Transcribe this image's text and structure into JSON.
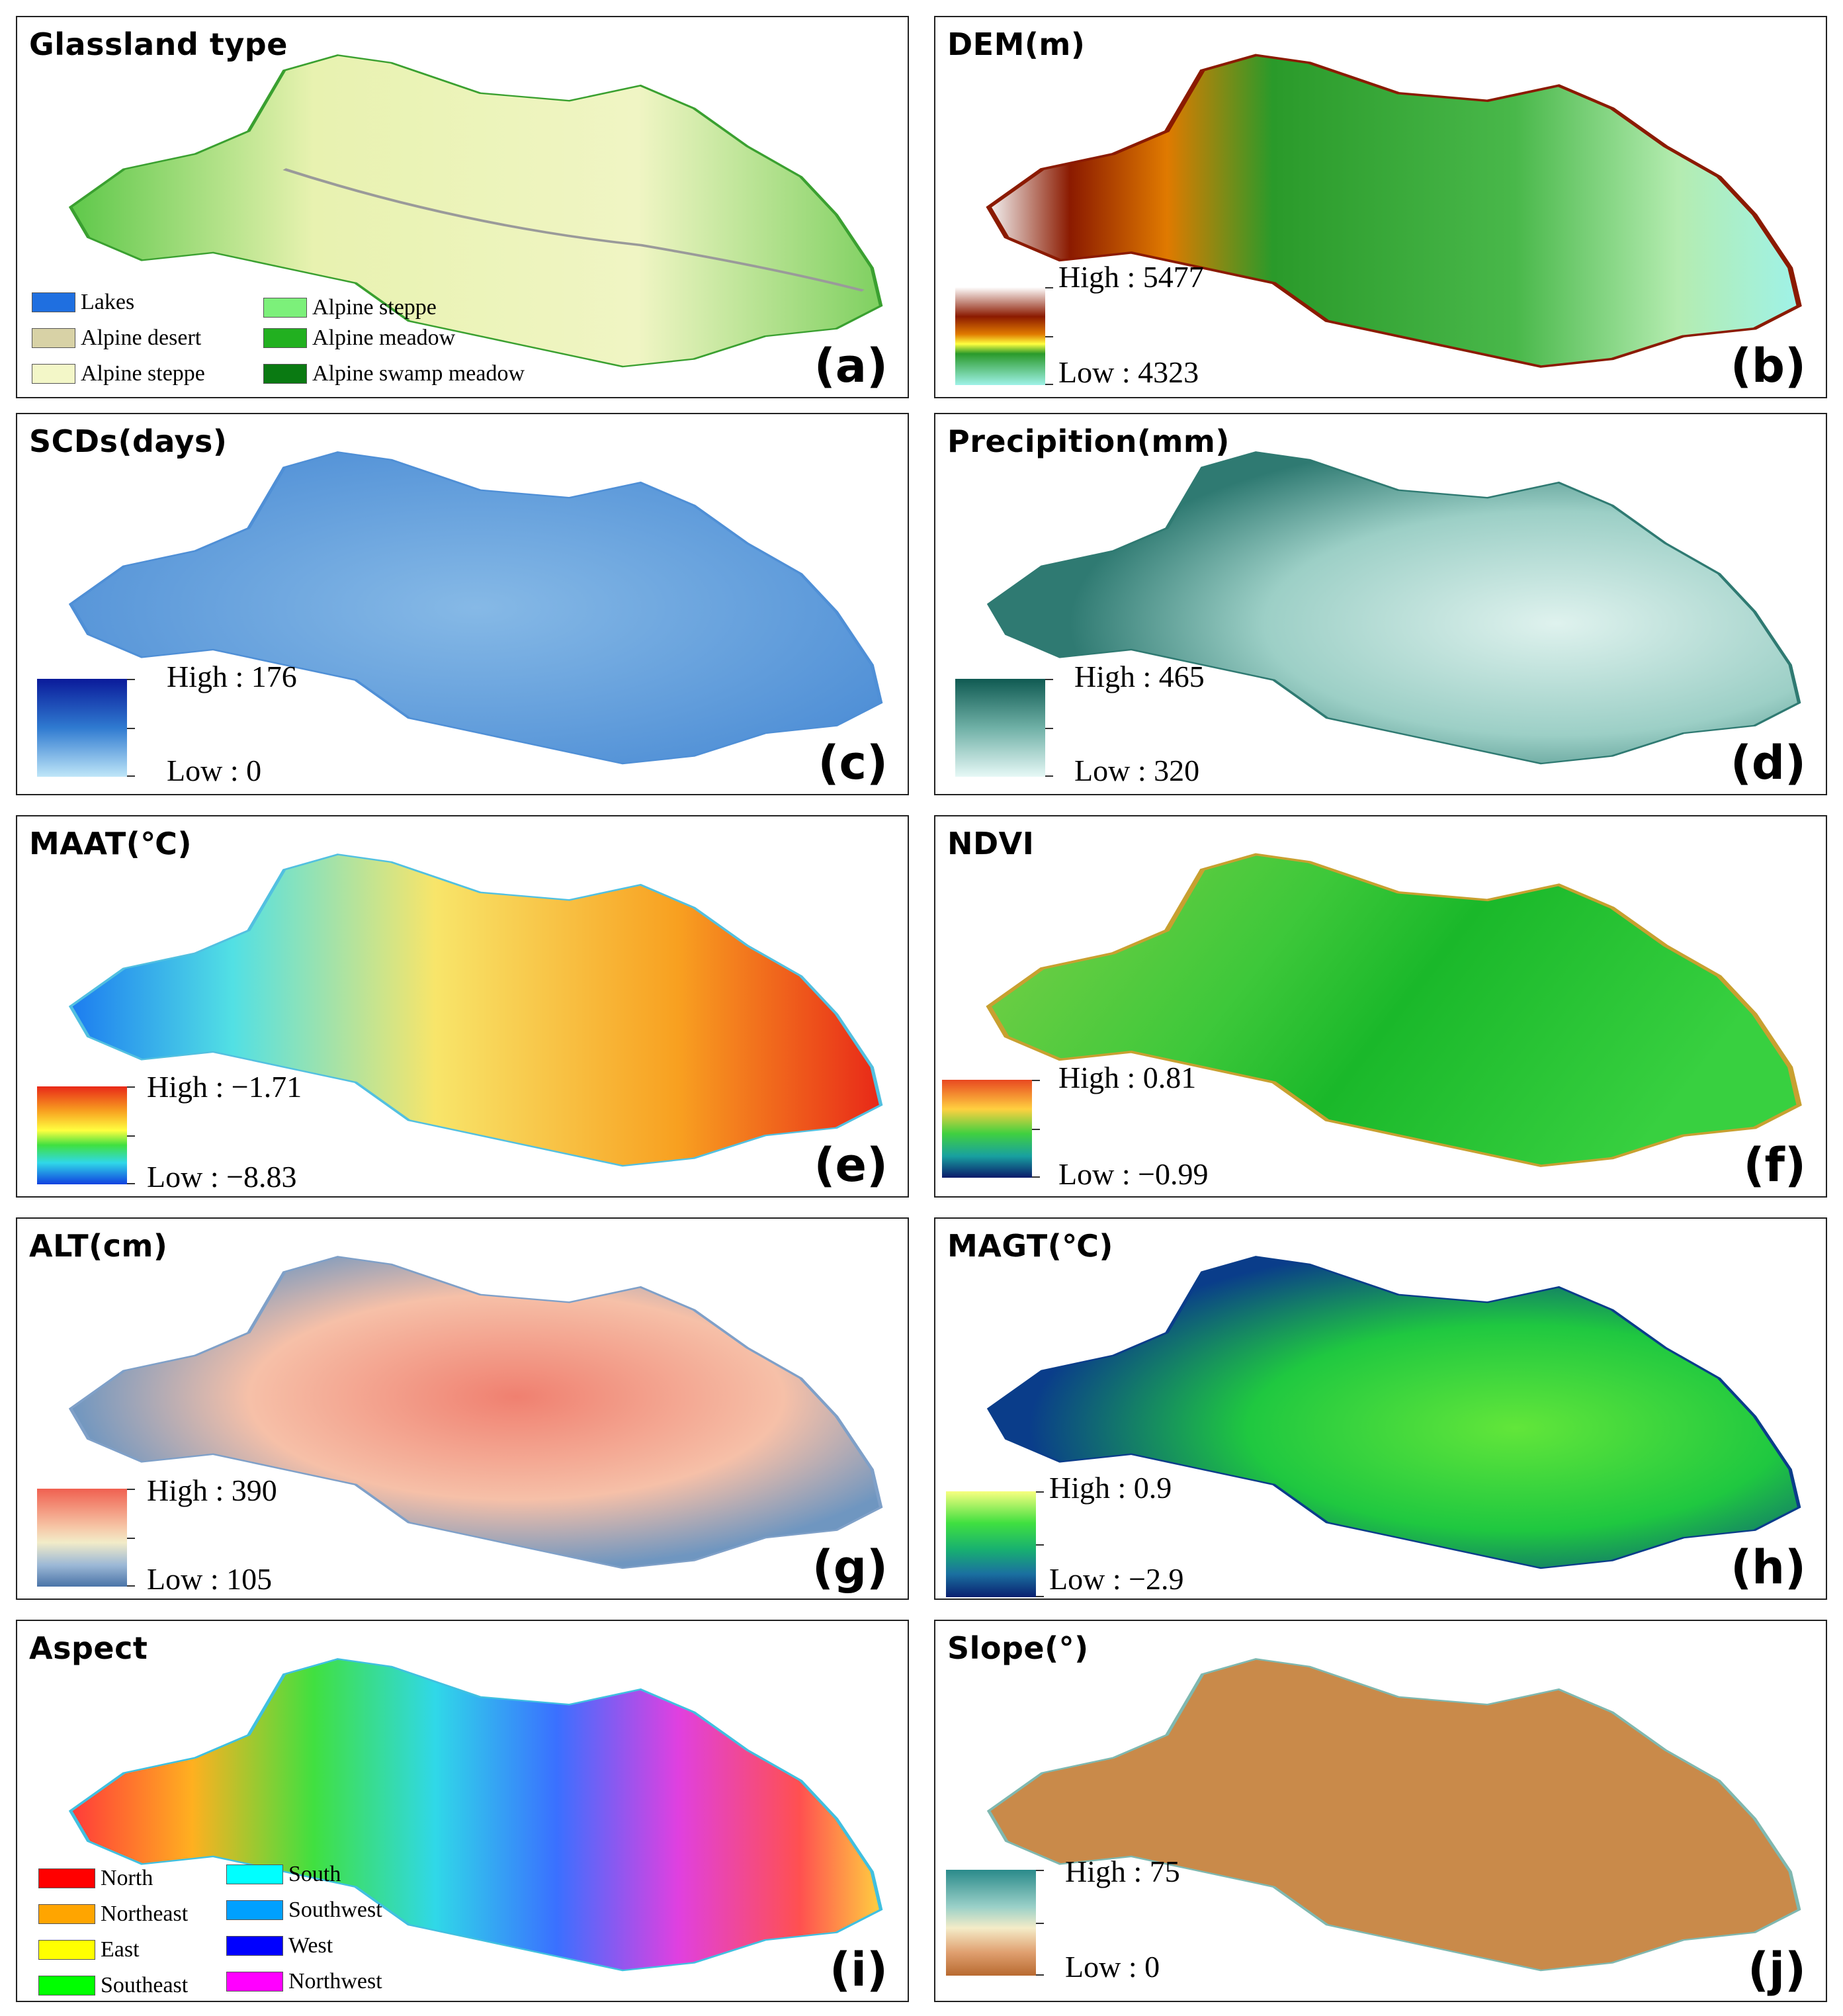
{
  "panels": {
    "a": {
      "title": "Glassland type",
      "letter": "(a)",
      "legend": [
        {
          "label": "Lakes",
          "color": "#1f6fe0"
        },
        {
          "label": "Alpine desert",
          "color": "#d8d2a6"
        },
        {
          "label": "Alpine steppe",
          "color": "#f3f7c8"
        },
        {
          "label": "Alpine steppe",
          "color": "#7cf07a"
        },
        {
          "label": "Alpine meadow",
          "color": "#22b020"
        },
        {
          "label": "Alpine swamp meadow",
          "color": "#0a7a12"
        }
      ]
    },
    "b": {
      "title": "DEM(m)",
      "letter": "(b)",
      "high": "High : 5477",
      "low": "Low : 4323"
    },
    "c": {
      "title": "SCDs(days)",
      "letter": "(c)",
      "high": "High : 176",
      "low": "Low : 0"
    },
    "d": {
      "title": "Precipition(mm)",
      "letter": "(d)",
      "high": "High : 465",
      "low": "Low : 320"
    },
    "e": {
      "title": "MAAT(℃)",
      "letter": "(e)",
      "high": "High : −1.71",
      "low": "Low : −8.83"
    },
    "f": {
      "title": "NDVI",
      "letter": "(f)",
      "high": "High : 0.81",
      "low": "Low : −0.99"
    },
    "g": {
      "title": "ALT(cm)",
      "letter": "(g)",
      "high": "High : 390",
      "low": "Low : 105"
    },
    "h": {
      "title": "MAGT(℃)",
      "letter": "(h)",
      "high": "High : 0.9",
      "low": "Low : −2.9"
    },
    "i": {
      "title": "Aspect",
      "letter": "(i)",
      "legend": [
        {
          "label": "North",
          "color": "#ff0000"
        },
        {
          "label": "Northeast",
          "color": "#ffa500"
        },
        {
          "label": "East",
          "color": "#ffff00"
        },
        {
          "label": "Southeast",
          "color": "#00ff00"
        },
        {
          "label": "South",
          "color": "#00ffff"
        },
        {
          "label": "Southwest",
          "color": "#00a0ff"
        },
        {
          "label": "West",
          "color": "#0000ff"
        },
        {
          "label": "Northwest",
          "color": "#ff00ff"
        }
      ]
    },
    "j": {
      "title": "Slope(°)",
      "letter": "(j)",
      "high": "High : 75",
      "low": "Low : 0"
    }
  }
}
